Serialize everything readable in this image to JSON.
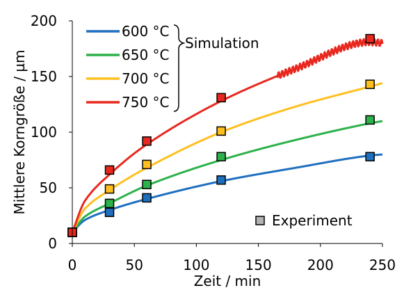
{
  "chart_data": {
    "type": "line",
    "xlabel": "Zeit / min",
    "ylabel": "Mittlere Korngröße / µm",
    "xlim": [
      0,
      250
    ],
    "ylim": [
      0,
      200
    ],
    "xticks": [
      0,
      50,
      100,
      150,
      200,
      250
    ],
    "yticks": [
      0,
      50,
      100,
      150,
      200
    ],
    "grid": false,
    "legend_group_label": "Simulation",
    "experiment_label": "Experiment",
    "experiment_x": [
      0,
      30,
      60,
      120,
      240
    ],
    "series": [
      {
        "name": "600 °C",
        "color": "#1f6fbf",
        "experiment": [
          10,
          28,
          41,
          57,
          78
        ],
        "simulation_x": [
          0,
          10,
          30,
          60,
          120,
          180,
          240,
          250
        ],
        "simulation_y": [
          10,
          21,
          30,
          40,
          56,
          68,
          79,
          80
        ]
      },
      {
        "name": "650 °C",
        "color": "#2db14a",
        "experiment": [
          10,
          36,
          53,
          78,
          111
        ],
        "simulation_x": [
          0,
          10,
          30,
          60,
          120,
          180,
          240,
          250
        ],
        "simulation_y": [
          10,
          24,
          36,
          52,
          75,
          93,
          108,
          110
        ]
      },
      {
        "name": "700 °C",
        "color": "#ffbf1f",
        "experiment": [
          10,
          49,
          71,
          101,
          143
        ],
        "simulation_x": [
          0,
          10,
          30,
          60,
          120,
          180,
          240,
          250
        ],
        "simulation_y": [
          10,
          31,
          48,
          68,
          100,
          123,
          141,
          144
        ]
      },
      {
        "name": "750 °C",
        "color": "#e8281e",
        "experiment": [
          10,
          66,
          92,
          131,
          184
        ],
        "simulation_x": [
          0,
          10,
          30,
          60,
          120,
          180,
          240,
          250
        ],
        "simulation_y": [
          10,
          38,
          62,
          89,
          128,
          157,
          181,
          180
        ]
      }
    ]
  }
}
